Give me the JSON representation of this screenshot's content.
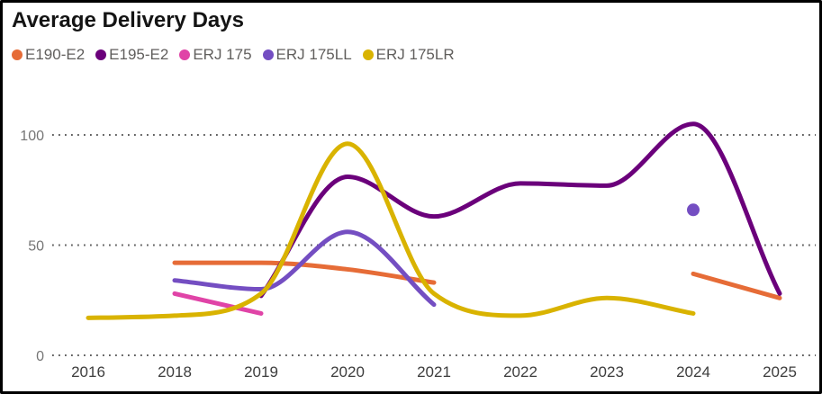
{
  "chart_data": {
    "type": "line",
    "title": "Average Delivery Days",
    "xlabel": "",
    "ylabel": "",
    "categories": [
      "2016",
      "2018",
      "2019",
      "2020",
      "2021",
      "2022",
      "2023",
      "2024",
      "2025"
    ],
    "series": [
      {
        "name": "E190-E2",
        "color": "#E66C37",
        "values": [
          null,
          42,
          42,
          39,
          33,
          null,
          null,
          37,
          26
        ]
      },
      {
        "name": "E195-E2",
        "color": "#6B007B",
        "values": [
          null,
          null,
          27,
          81,
          63,
          78,
          77,
          105,
          28
        ]
      },
      {
        "name": "ERJ 175",
        "color": "#E044A7",
        "values": [
          null,
          28,
          19,
          null,
          null,
          null,
          null,
          null,
          null
        ]
      },
      {
        "name": "ERJ 175LL",
        "color": "#744EC2",
        "values": [
          null,
          34,
          30,
          56,
          23,
          null,
          null,
          66,
          null
        ]
      },
      {
        "name": "ERJ 175LR",
        "color": "#D9B300",
        "values": [
          17,
          18,
          28,
          96,
          28,
          18,
          26,
          19,
          null
        ]
      }
    ],
    "yticks": [
      0,
      50,
      100
    ],
    "ylim": [
      0,
      115
    ],
    "grid": "dotted-horizontal",
    "legend_position": "top-left",
    "line_style": "smooth",
    "notes": {
      "missing_category": "2017 is absent from the x axis",
      "isolated_point": {
        "series": "ERJ 175LL",
        "category": "2024",
        "value": 66
      }
    }
  },
  "colors": {
    "background": "#FFFFFF",
    "frame_border": "#000000",
    "title_text": "#141414",
    "legend_text": "#605E5C",
    "grid_dots": "#5F5F5F",
    "x_tick_text": "#3D3D3D",
    "y_tick_text": "#757575"
  }
}
